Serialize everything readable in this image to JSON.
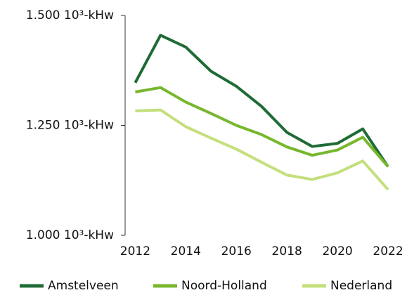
{
  "chart_data": {
    "type": "line",
    "x": [
      2012,
      2013,
      2014,
      2015,
      2016,
      2017,
      2018,
      2019,
      2020,
      2021,
      2022
    ],
    "series": [
      {
        "name": "Amstelveen",
        "color": "#1f6b36",
        "values": [
          1347,
          1455,
          1428,
          1373,
          1339,
          1293,
          1234,
          1202,
          1209,
          1242,
          1156
        ]
      },
      {
        "name": "Noord-Holland",
        "color": "#78b72d",
        "values": [
          1326,
          1336,
          1303,
          1277,
          1250,
          1229,
          1201,
          1182,
          1194,
          1223,
          1156
        ]
      },
      {
        "name": "Nederland",
        "color": "#c4df7c",
        "values": [
          1283,
          1285,
          1247,
          1221,
          1196,
          1166,
          1137,
          1127,
          1142,
          1169,
          1104
        ]
      }
    ],
    "xlim": [
      2011.6,
      2022.5
    ],
    "xticks": [
      2012,
      2014,
      2016,
      2018,
      2020,
      2022
    ],
    "ylim": [
      1000,
      1500
    ],
    "yticks": [
      {
        "value": 1000,
        "label": "1.000 10³-kHw"
      },
      {
        "value": 1250,
        "label": "1.250 10³-kHw"
      },
      {
        "value": 1500,
        "label": "1.500 10³-kHw"
      }
    ],
    "legend": "bottom"
  }
}
